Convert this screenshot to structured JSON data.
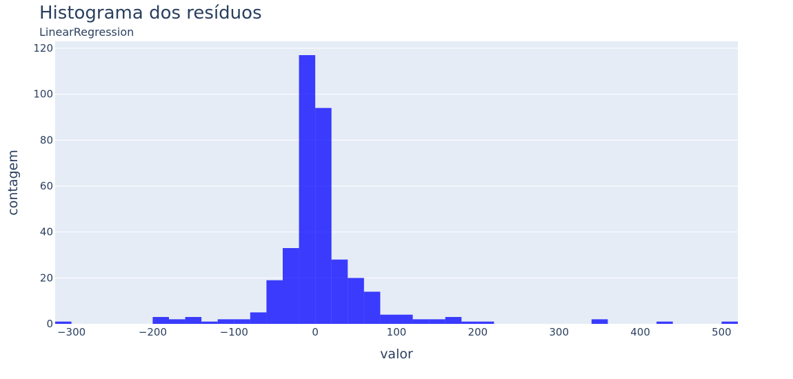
{
  "chart_data": {
    "type": "bar",
    "title": "Histograma dos resíduos",
    "subtitle": "LinearRegression",
    "xlabel": "valor",
    "ylabel": "contagem",
    "xlim": [
      -320,
      520
    ],
    "ylim": [
      0,
      123
    ],
    "x_ticks": [
      -300,
      -200,
      -100,
      0,
      100,
      200,
      300,
      400,
      500
    ],
    "x_tick_labels": [
      "−300",
      "−200",
      "−100",
      "0",
      "100",
      "200",
      "300",
      "400",
      "500"
    ],
    "y_ticks": [
      0,
      20,
      40,
      60,
      80,
      100,
      120
    ],
    "y_tick_labels": [
      "0",
      "20",
      "40",
      "60",
      "80",
      "100",
      "120"
    ],
    "grid": true,
    "bin_width": 20,
    "bins": [
      {
        "x0": -320,
        "x1": -300,
        "count": 1
      },
      {
        "x0": -200,
        "x1": -180,
        "count": 3
      },
      {
        "x0": -180,
        "x1": -160,
        "count": 2
      },
      {
        "x0": -160,
        "x1": -140,
        "count": 3
      },
      {
        "x0": -140,
        "x1": -120,
        "count": 1
      },
      {
        "x0": -120,
        "x1": -100,
        "count": 2
      },
      {
        "x0": -100,
        "x1": -80,
        "count": 2
      },
      {
        "x0": -80,
        "x1": -60,
        "count": 5
      },
      {
        "x0": -60,
        "x1": -40,
        "count": 19
      },
      {
        "x0": -40,
        "x1": -20,
        "count": 33
      },
      {
        "x0": -20,
        "x1": 0,
        "count": 117
      },
      {
        "x0": 0,
        "x1": 20,
        "count": 94
      },
      {
        "x0": 20,
        "x1": 40,
        "count": 28
      },
      {
        "x0": 40,
        "x1": 60,
        "count": 20
      },
      {
        "x0": 60,
        "x1": 80,
        "count": 14
      },
      {
        "x0": 80,
        "x1": 100,
        "count": 4
      },
      {
        "x0": 100,
        "x1": 120,
        "count": 4
      },
      {
        "x0": 120,
        "x1": 140,
        "count": 2
      },
      {
        "x0": 140,
        "x1": 160,
        "count": 2
      },
      {
        "x0": 160,
        "x1": 180,
        "count": 3
      },
      {
        "x0": 180,
        "x1": 200,
        "count": 1
      },
      {
        "x0": 200,
        "x1": 220,
        "count": 1
      },
      {
        "x0": 340,
        "x1": 360,
        "count": 2
      },
      {
        "x0": 420,
        "x1": 440,
        "count": 1
      },
      {
        "x0": 500,
        "x1": 520,
        "count": 1
      }
    ],
    "colors": {
      "bar": "#0000ff",
      "plot_bg": "#e5ecf6",
      "grid": "#ffffff",
      "text": "#2a3f5f"
    }
  }
}
